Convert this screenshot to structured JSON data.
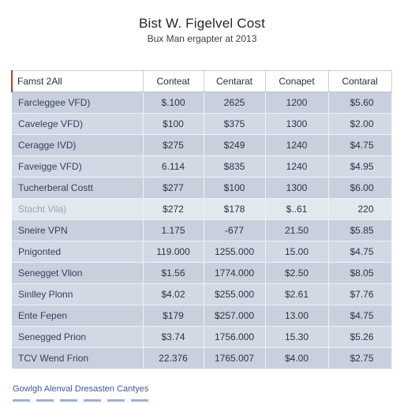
{
  "header": {
    "title": "Bist W. Figelvel Cost",
    "subtitle": "Bux Man ergapter at 2013"
  },
  "table": {
    "columns": [
      "Famst 2All",
      "Conteat",
      "Centarat",
      "Conapet",
      "Contaral"
    ],
    "rows": [
      {
        "name": "Farcleggee VFD)",
        "values": [
          "$.100",
          "2625",
          "1200",
          "$5.60"
        ]
      },
      {
        "name": "Cavelege VFD)",
        "values": [
          "$100",
          "$375",
          "1300",
          "$2.00"
        ]
      },
      {
        "name": "Ceragge IVD)",
        "values": [
          "$275",
          "$249",
          "1240",
          "$4.75"
        ]
      },
      {
        "name": "Faveigge VFD)",
        "values": [
          "6.114",
          "$835",
          "1240",
          "$4.95"
        ]
      },
      {
        "name": "Tucherberal Costt",
        "values": [
          "$277",
          "$100",
          "1300",
          "$6.00"
        ]
      },
      {
        "name": "Stacht Vila)",
        "values": [
          "$272",
          "$178",
          "$..61",
          "220"
        ]
      },
      {
        "name": "Sneire VPN",
        "values": [
          "1.175",
          "-677",
          "21.50",
          "$5.85"
        ]
      },
      {
        "name": "Pnigonted",
        "values": [
          "119.000",
          "1255.000",
          "15.00",
          "$4.75"
        ]
      },
      {
        "name": "Senegget Vlion",
        "values": [
          "$1.56",
          "1774.000",
          "$2.50",
          "$8.05"
        ]
      },
      {
        "name": "Sinlley Plonn",
        "values": [
          "$4.02",
          "$255.000",
          "$2.61",
          "$7.76"
        ]
      },
      {
        "name": "Ente Fepen",
        "values": [
          "$179",
          "$257.000",
          "13.00",
          "$4.75"
        ]
      },
      {
        "name": "Senegged Prion",
        "values": [
          "$3.74",
          "1756.000",
          "15.30",
          "$5.26"
        ]
      },
      {
        "name": "TCV Wend Frion",
        "values": [
          "22.376",
          "1765.007",
          "$4.00",
          "$2.75"
        ]
      }
    ]
  },
  "footer": {
    "note": "Gowlgh Alenval Dresasten Cantyes"
  }
}
